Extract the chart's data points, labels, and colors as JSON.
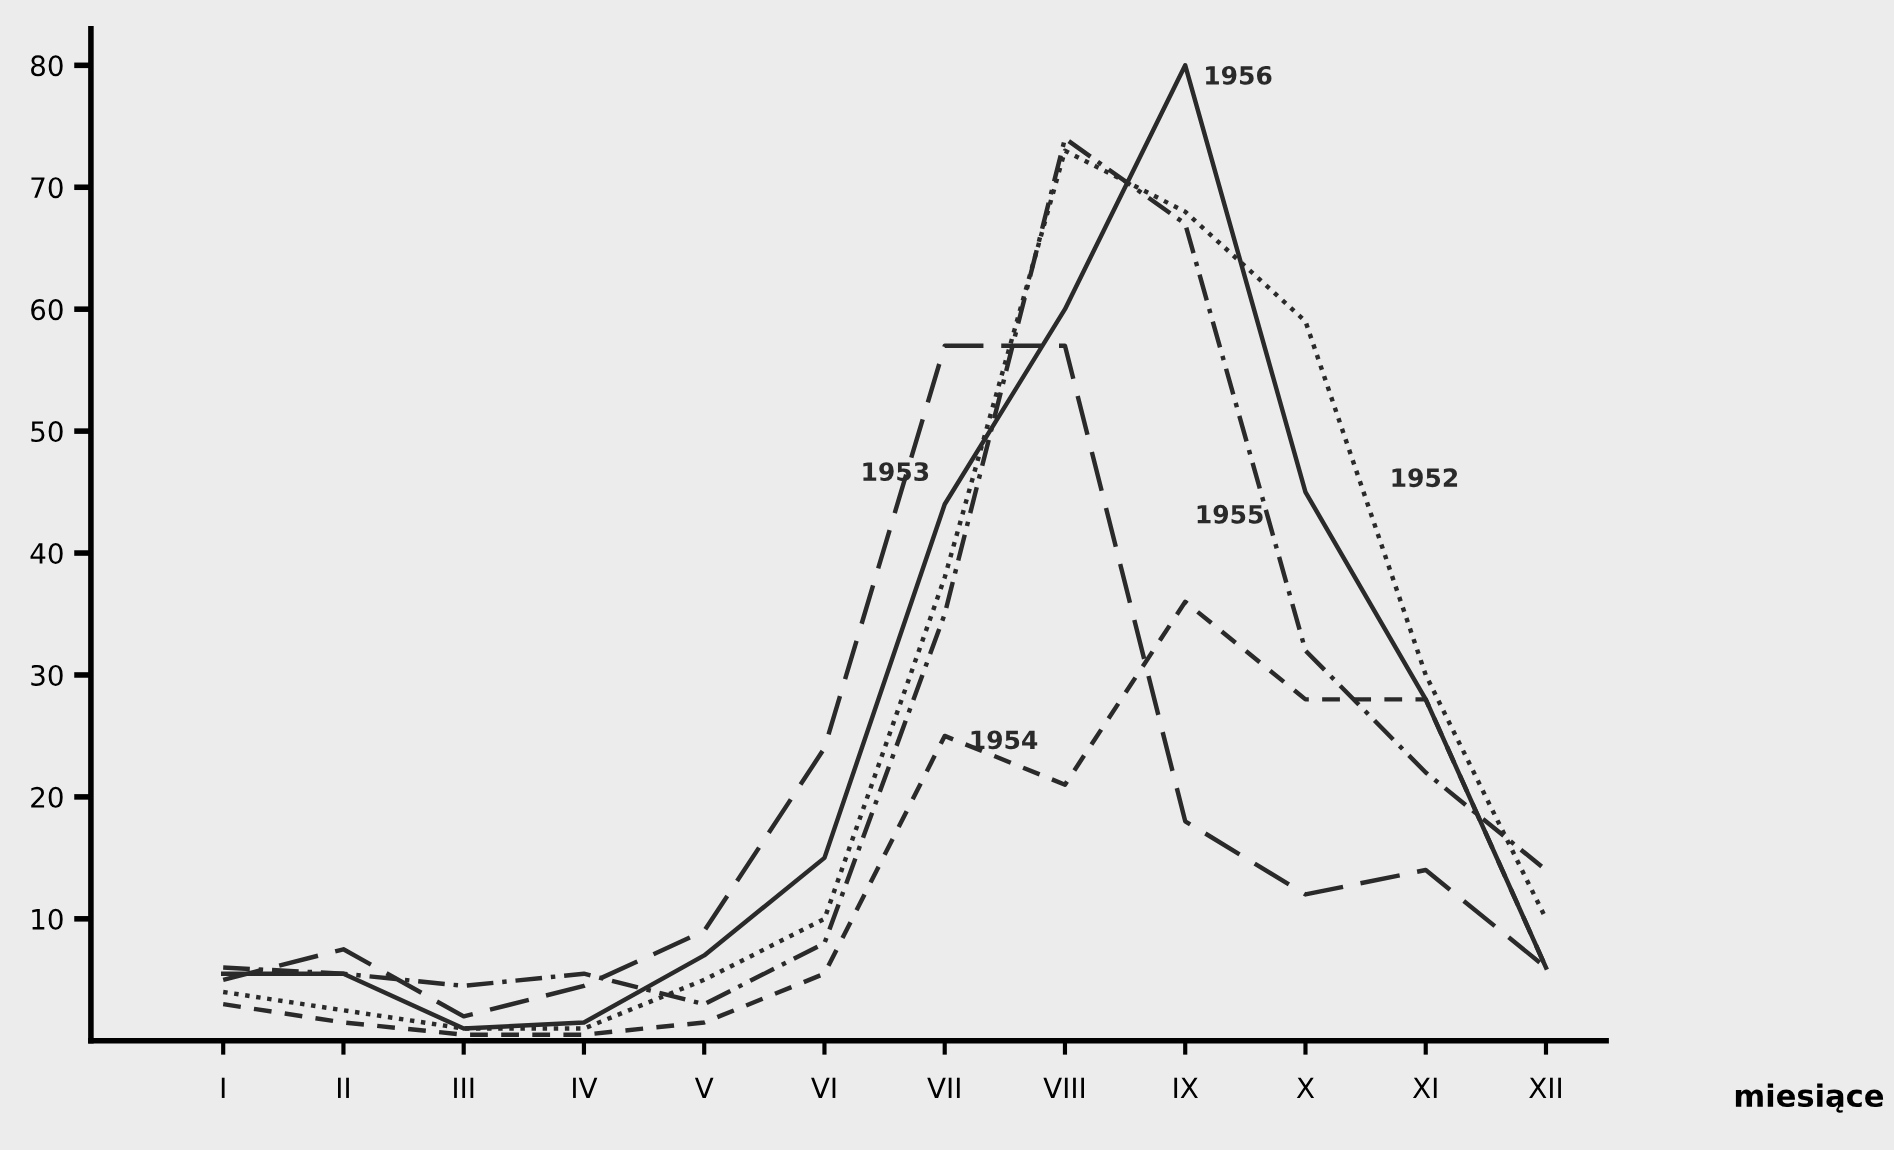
{
  "chart_data": {
    "type": "line",
    "xlabel": "miesiące",
    "categories": [
      "I",
      "II",
      "III",
      "IV",
      "V",
      "VI",
      "VII",
      "VIII",
      "IX",
      "X",
      "XI",
      "XII"
    ],
    "ylim": [
      0,
      83
    ],
    "yticks": [
      10,
      20,
      30,
      40,
      50,
      60,
      70,
      80
    ],
    "grid": false,
    "legend": false,
    "marker": "none",
    "series": [
      {
        "name": "1956",
        "color": "#2a2a2a",
        "line_style": "solid",
        "values": [
          5.5,
          5.5,
          1,
          1.5,
          7,
          15,
          44,
          60,
          80,
          45,
          28,
          6
        ]
      },
      {
        "name": "1953",
        "color": "#2a2a2a",
        "line_style": "dashed",
        "values": [
          5,
          7.5,
          2,
          4.5,
          9,
          24,
          57,
          57,
          18,
          12,
          14,
          6
        ]
      },
      {
        "name": "1954",
        "color": "#2a2a2a",
        "line_style": "short dashed",
        "values": [
          3,
          1.5,
          0.5,
          0.5,
          1.5,
          5.5,
          25,
          21,
          36,
          28,
          28,
          6
        ]
      },
      {
        "name": "1955",
        "color": "#2a2a2a",
        "line_style": "dashdot",
        "values": [
          6,
          5.5,
          4.5,
          5.5,
          3,
          8,
          35,
          74,
          67,
          32,
          22,
          14
        ]
      },
      {
        "name": "1952",
        "color": "#2a2a2a",
        "line_style": "dotted",
        "values": [
          4,
          2.5,
          1,
          1,
          5,
          10,
          38,
          73,
          68,
          59,
          30,
          10
        ]
      }
    ]
  }
}
